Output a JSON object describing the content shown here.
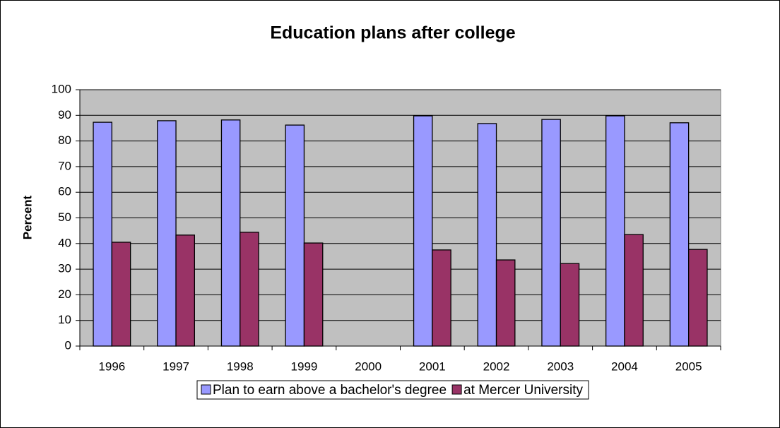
{
  "chart_data": {
    "type": "bar",
    "title": "Education plans after college",
    "y_label": "Percent",
    "categories": [
      "1996",
      "1997",
      "1998",
      "1999",
      "2000",
      "2001",
      "2002",
      "2003",
      "2004",
      "2005"
    ],
    "series": [
      {
        "name": "Plan to earn above a bachelor's degree",
        "color": "#9999ff",
        "values": [
          87.3,
          87.9,
          88.2,
          86.2,
          null,
          89.8,
          86.8,
          88.4,
          89.8,
          87.1
        ]
      },
      {
        "name": "at Mercer University",
        "color": "#993366",
        "values": [
          40.5,
          43.3,
          44.4,
          40.2,
          null,
          37.5,
          33.6,
          32.2,
          43.5,
          37.7
        ]
      }
    ],
    "ylim": [
      0,
      100
    ],
    "yticks": [
      0,
      10,
      20,
      30,
      40,
      50,
      60,
      70,
      80,
      90,
      100
    ],
    "grid": true,
    "plot_background": "#c0c0c0",
    "legend": "bottom"
  }
}
